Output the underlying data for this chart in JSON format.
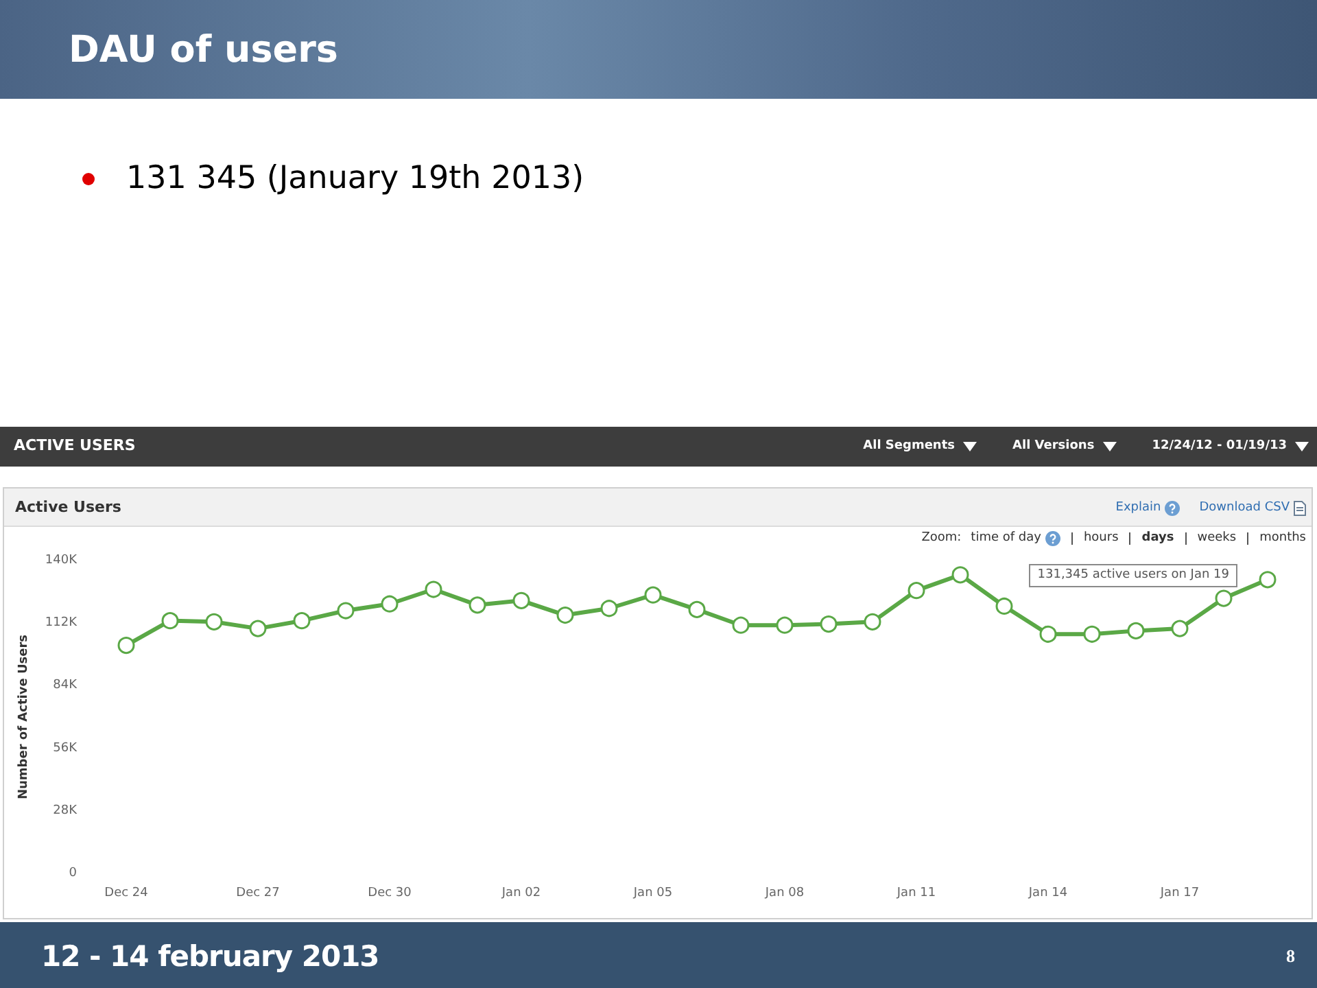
{
  "chart_data": {
    "type": "line",
    "title": "DAU of users",
    "ylabel": "Number of Active Users",
    "categories": [
      "Dec 24",
      null,
      null,
      "Dec 27",
      null,
      null,
      "Dec 30",
      null,
      null,
      "Jan 02",
      null,
      null,
      "Jan 05",
      null,
      null,
      "Jan 08",
      null,
      null,
      "Jan 11",
      null,
      null,
      "Jan 14",
      null,
      null,
      "Jan 17",
      null,
      null
    ],
    "series": [
      {
        "color": "#5aa846",
        "values": [
          102000,
          113000,
          112500,
          109500,
          113000,
          117500,
          120500,
          127000,
          120000,
          122000,
          115500,
          118500,
          124500,
          118000,
          111000,
          111000,
          111500,
          112500,
          126500,
          133500,
          119500,
          107000,
          107000,
          108500,
          109500,
          123000,
          131345
        ]
      }
    ],
    "ylim": [
      0,
      140000
    ],
    "yticks": [
      0,
      {
        "value": 28000,
        "label": "28K"
      },
      {
        "value": 56000,
        "label": "56K"
      },
      {
        "value": 84000,
        "label": "84K"
      },
      {
        "value": 112000,
        "label": "112K"
      },
      {
        "value": 140000,
        "label": "140K"
      }
    ],
    "marker": "circle",
    "line_style": "solid",
    "annotations": [
      "131 345 (January 19th 2013)",
      "ACTIVE USERS",
      "All Segments",
      "All Versions",
      "12/24/12 - 01/19/13",
      "Active Users",
      "Explain",
      "Download CSV",
      "Zoom:",
      "time of day",
      "hours",
      "days",
      "weeks",
      "months",
      "131,345 active users on Jan 19",
      "12 - 14 february 2013",
      "8"
    ]
  }
}
